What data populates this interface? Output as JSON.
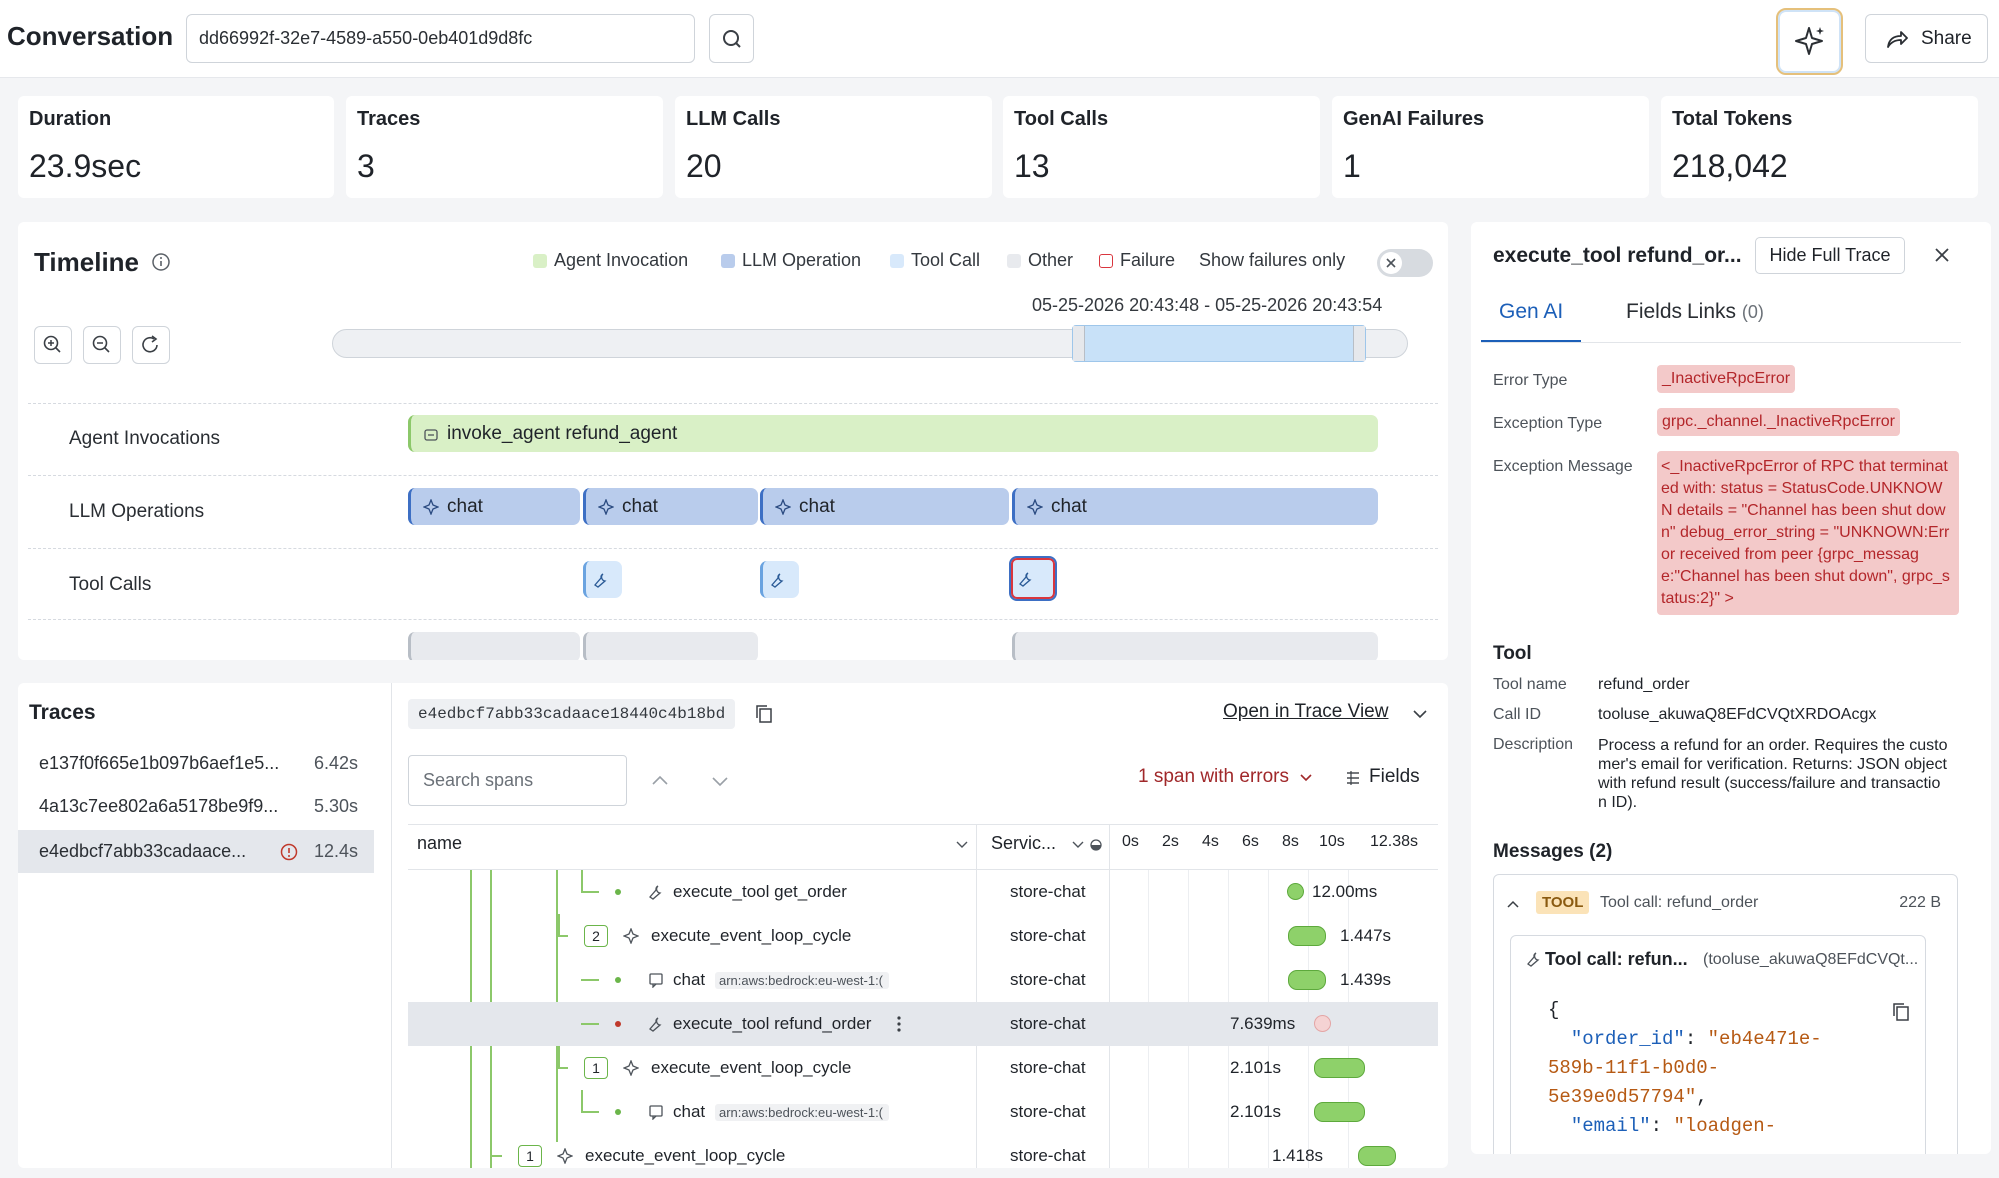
{
  "header": {
    "title": "Conversation",
    "conversation_id": "dd66992f-32e7-4589-a550-0eb401d9d8fc",
    "share_label": "Share"
  },
  "stats": [
    {
      "label": "Duration",
      "value": "23.9sec"
    },
    {
      "label": "Traces",
      "value": "3"
    },
    {
      "label": "LLM Calls",
      "value": "20"
    },
    {
      "label": "Tool Calls",
      "value": "13"
    },
    {
      "label": "GenAI Failures",
      "value": "1"
    },
    {
      "label": "Total Tokens",
      "value": "218,042"
    }
  ],
  "timeline": {
    "title": "Timeline",
    "legend": {
      "agent": "Agent Invocation",
      "llm": "LLM Operation",
      "tool": "Tool Call",
      "other": "Other",
      "failure": "Failure",
      "show_failures": "Show failures only"
    },
    "range_label": "05-25-2026 20:43:48 - 05-25-2026 20:43:54",
    "lanes": {
      "agent": "Agent Invocations",
      "llm": "LLM Operations",
      "tool": "Tool Calls"
    },
    "agent_bar": "invoke_agent refund_agent",
    "chat_label": "chat",
    "colors": {
      "agent": "#d9f0c6",
      "llm": "#b9ccec",
      "tool": "#d8e9fb",
      "other": "#e8eaee",
      "failure": "#d9363e"
    }
  },
  "traces": {
    "title": "Traces",
    "items": [
      {
        "id": "e137f0f665e1b097b6aef1e5...",
        "duration": "6.42s"
      },
      {
        "id": "4a13c7ee802a6a5178be9f9...",
        "duration": "5.30s"
      },
      {
        "id": "e4edbcf7abb33cadaace...",
        "duration": "12.4s"
      }
    ],
    "selected_trace_id": "e4edbcf7abb33cadaace18440c4b18bd",
    "open_trace_view": "Open in Trace View",
    "search_placeholder": "Search spans",
    "errors_label": "1 span with errors",
    "fields_label": "Fields",
    "columns": {
      "name": "name",
      "service": "Servic...",
      "ticks": [
        "0s",
        "2s",
        "4s",
        "6s",
        "8s",
        "10s",
        "12.38s"
      ]
    },
    "rows": [
      {
        "name": "execute_tool get_order",
        "service": "store-chat",
        "duration": "12.00ms"
      },
      {
        "count": "2",
        "name": "execute_event_loop_cycle",
        "service": "store-chat",
        "duration": "1.447s"
      },
      {
        "name": "chat",
        "arn": "arn:aws:bedrock:eu-west-1:(",
        "service": "store-chat",
        "duration": "1.439s"
      },
      {
        "name": "execute_tool refund_order",
        "service": "store-chat",
        "duration": "7.639ms"
      },
      {
        "count": "1",
        "name": "execute_event_loop_cycle",
        "service": "store-chat",
        "duration": "2.101s"
      },
      {
        "name": "chat",
        "arn": "arn:aws:bedrock:eu-west-1:(",
        "service": "store-chat",
        "duration": "2.101s"
      },
      {
        "count": "1",
        "name": "execute_event_loop_cycle",
        "service": "store-chat",
        "duration": "1.418s"
      }
    ]
  },
  "detail": {
    "title": "execute_tool refund_or...",
    "hide_label": "Hide Full Trace",
    "tabs": {
      "genai": "Gen AI",
      "fields": "Fields",
      "links": "Links",
      "links_count": "(0)"
    },
    "error_type_label": "Error Type",
    "error_type": "_InactiveRpcError",
    "exception_type_label": "Exception Type",
    "exception_type": "grpc._channel._InactiveRpcError",
    "exception_message_label": "Exception Message",
    "exception_message_lines": [
      "<_InactiveRpcError of RPC that terminat",
      "ed with: status = StatusCode.UNKNOW",
      "N details = \"Channel has been shut dow",
      "n\" debug_error_string = \"UNKNOWN:Err",
      "or received from peer {grpc_messag",
      "e:\"Channel has been shut down\", grpc_s",
      "tatus:2}\" >"
    ],
    "tool_section": "Tool",
    "tool_name_label": "Tool name",
    "tool_name": "refund_order",
    "call_id_label": "Call ID",
    "call_id": "tooluse_akuwaQ8EFdCVQtXRDOAcgx",
    "description_label": "Description",
    "description_lines": [
      "Process a refund for an order. Requires the custo",
      "mer's email for verification. Returns: JSON object",
      "with refund result (success/failure and transactio",
      "n ID)."
    ],
    "messages_label": "Messages (2)",
    "msg_badge": "TOOL",
    "msg_title": "Tool call: refund_order",
    "msg_size": "222 B",
    "inner_title": "Tool call: refun...",
    "inner_id": "(tooluse_akuwaQ8EFdCVQt...",
    "code": {
      "brace": "{",
      "order_key": "\"order_id\"",
      "order_val_1": "\"eb4e471e-",
      "order_val_2": "589b-11f1-b0d0-",
      "order_val_3": "5e39e0d57794\"",
      "email_key": "\"email\"",
      "email_val": "\"loadgen-"
    }
  }
}
